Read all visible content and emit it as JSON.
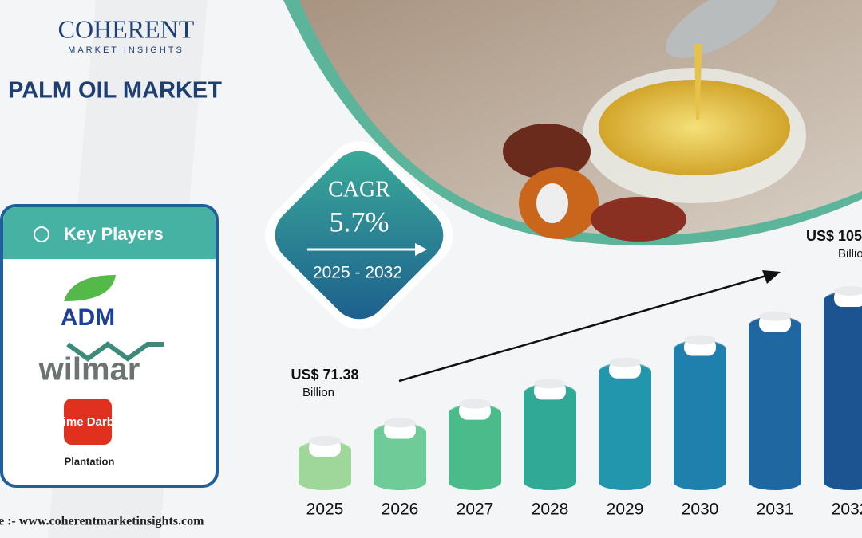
{
  "header": {
    "logo_name": "COHERENT",
    "logo_tagline": "MARKET INSIGHTS",
    "title": "PALM OIL MARKET"
  },
  "key_players": {
    "heading": "Key Players",
    "players": [
      "ADM",
      "wilmar",
      "Sime Darby"
    ],
    "player_note": "Plantation"
  },
  "cagr": {
    "label": "CAGR",
    "value": "5.7%",
    "period": "2025 - 2032"
  },
  "source": "e :- www.coherentmarketinsights.com",
  "chart_data": {
    "type": "bar",
    "categories": [
      "2025",
      "2026",
      "2027",
      "2028",
      "2029",
      "2030",
      "2031",
      "2032"
    ],
    "values": [
      71.38,
      75.45,
      79.75,
      84.3,
      89.1,
      94.2,
      99.6,
      105.3
    ],
    "value_labels": [
      "US$ 71.38",
      null,
      null,
      null,
      null,
      null,
      null,
      "US$ 105"
    ],
    "value_unit": "Billion",
    "colors": [
      "#9fd79a",
      "#6fcb98",
      "#4cbb8c",
      "#30a996",
      "#2296ac",
      "#1f7fad",
      "#1f67a0",
      "#1b5490"
    ]
  }
}
